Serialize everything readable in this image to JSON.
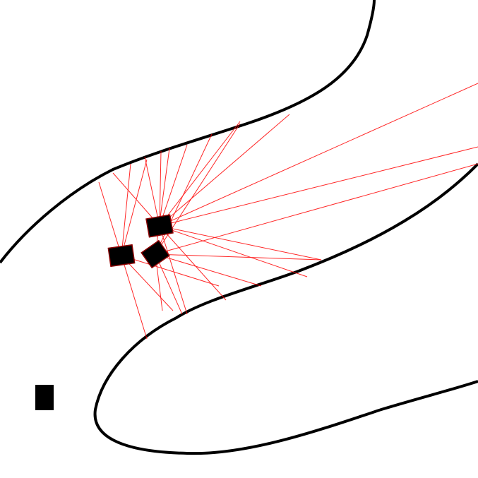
{
  "scene": {
    "background_color": "#ffffff",
    "track_color": "#000000",
    "sensor_ray_color": "#ff0000",
    "agent_color": "#000000",
    "agent_outline_color": "#8b0000"
  },
  "agents": [
    {
      "id": "agent-1",
      "label": ""
    },
    {
      "id": "agent-2",
      "label": ""
    },
    {
      "id": "agent-3",
      "label": ""
    }
  ],
  "marker": {
    "label": ""
  }
}
